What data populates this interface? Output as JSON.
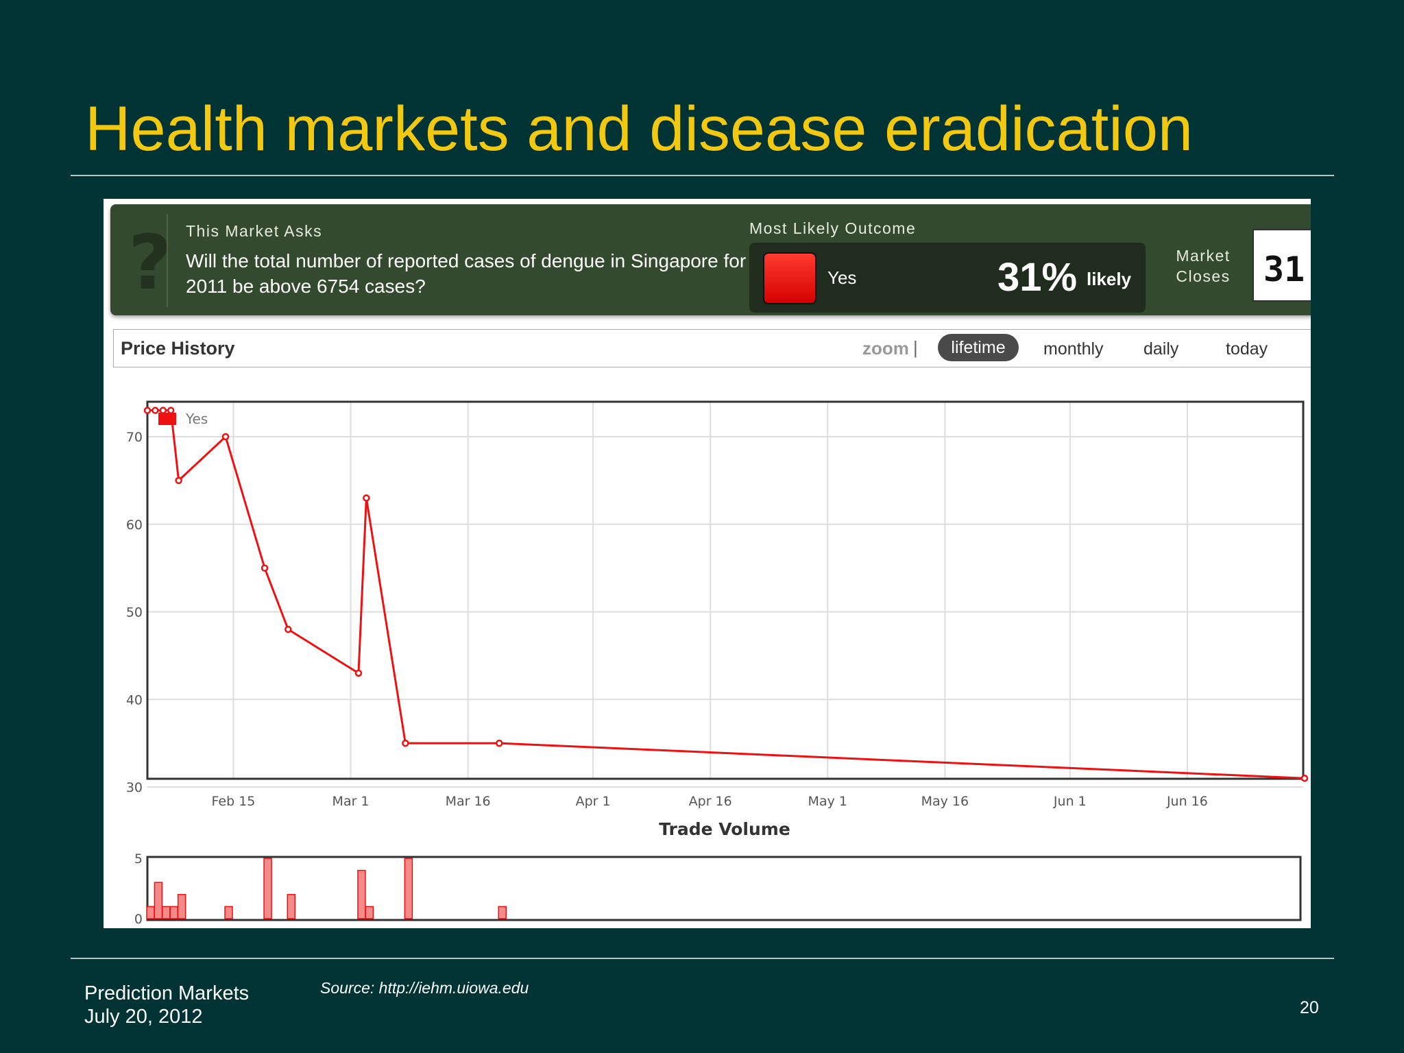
{
  "slide": {
    "title": "Health markets and disease eradication",
    "footer_line1": "Prediction Markets",
    "footer_line2": "July 20, 2012",
    "source": "Source: http://iehm.uiowa.edu",
    "page_number": "20"
  },
  "market": {
    "asks_label": "This Market Asks",
    "question": "Will the total number of reported cases of dengue in Singapore for 2011 be above 6754 cases?",
    "outcome_label": "Most Likely Outcome",
    "outcome": "Yes",
    "outcome_percent": "31%",
    "outcome_likely": "likely",
    "closes_label": "Market Closes",
    "closes_date": "31",
    "swatch_color": "#ee1111"
  },
  "price_history": {
    "title": "Price History",
    "zoom_label": "zoom",
    "separator": "|",
    "options": [
      "lifetime",
      "monthly",
      "daily",
      "today"
    ],
    "selected": "lifetime"
  },
  "chart_data": [
    {
      "type": "line",
      "title": "Price History",
      "series": [
        {
          "name": "Yes",
          "color": "#ee1111",
          "x": [
            "Feb 4",
            "Feb 5",
            "Feb 6",
            "Feb 7",
            "Feb 8",
            "Feb 14",
            "Feb 19",
            "Feb 22",
            "Mar 2",
            "Mar 3",
            "Mar 8",
            "Mar 20",
            "Jul 1"
          ],
          "values": [
            73,
            73,
            73,
            73,
            65,
            70,
            55,
            48,
            43,
            63,
            35,
            35,
            31
          ]
        }
      ],
      "x_tick_labels": [
        "Feb 15",
        "Mar 1",
        "Mar 16",
        "Apr 1",
        "Apr 16",
        "May 1",
        "May 16",
        "Jun 1",
        "Jun 16"
      ],
      "y_ticks": [
        30,
        40,
        50,
        60,
        70
      ],
      "ylim": [
        30,
        74
      ],
      "grid": true,
      "legend": "top-left"
    },
    {
      "type": "bar",
      "title": "Trade Volume",
      "color": "#ee1111",
      "x": [
        "Feb 4",
        "Feb 5",
        "Feb 6",
        "Feb 7",
        "Feb 8",
        "Feb 14",
        "Feb 19",
        "Feb 22",
        "Mar 2",
        "Mar 3",
        "Mar 8",
        "Mar 20"
      ],
      "values": [
        1,
        3,
        1,
        1,
        2,
        1,
        5,
        2,
        4,
        1,
        5,
        1
      ],
      "y_ticks": [
        0,
        5
      ],
      "ylim": [
        0,
        5
      ]
    }
  ]
}
